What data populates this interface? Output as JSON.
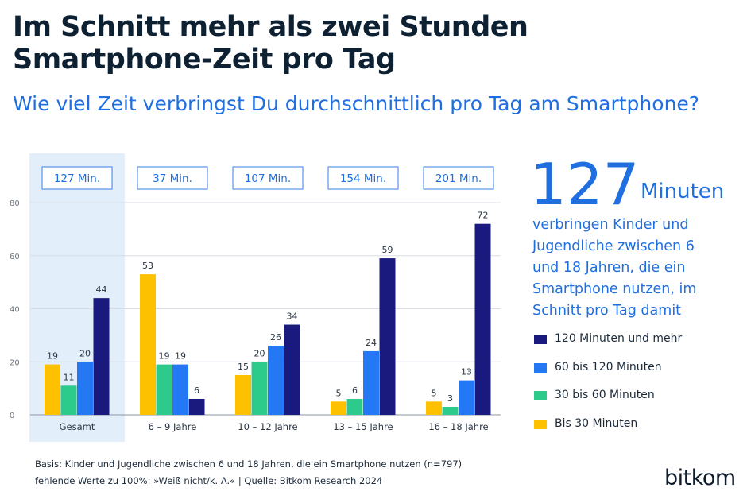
{
  "title": "Im Schnitt mehr als zwei Stunden Smartphone-Zeit pro Tag",
  "subtitle": "Wie viel Zeit verbringst Du durchschnittlich pro Tag am Smartphone?",
  "highlight": {
    "number": "127",
    "unit": "Minuten",
    "text": "verbringen Kinder und Jugendliche zwischen 6 und 18 Jahren, die ein Smartphone nutzen, im Schnitt pro Tag damit"
  },
  "colors": {
    "bis30": "#fdc100",
    "30bis60": "#2ccb8c",
    "60bis120": "#2478f4",
    "120plus": "#1a1a7e",
    "accent": "#1f6fe0",
    "highlight_band": "#e3eefb"
  },
  "legend": [
    {
      "label": "120 Minuten und mehr",
      "color": "#1a1a7e"
    },
    {
      "label": "60 bis 120 Minuten",
      "color": "#2478f4"
    },
    {
      "label": "30 bis 60 Minuten",
      "color": "#2ccb8c"
    },
    {
      "label": "Bis 30 Minuten",
      "color": "#fdc100"
    }
  ],
  "chart_data": {
    "type": "bar",
    "categories": [
      "Gesamt",
      "6 – 9 Jahre",
      "10 – 12 Jahre",
      "13 – 15 Jahre",
      "16 – 18 Jahre"
    ],
    "averages": [
      "127 Min.",
      "37 Min.",
      "107 Min.",
      "154 Min.",
      "201 Min."
    ],
    "series": [
      {
        "name": "Bis 30 Minuten",
        "color": "#fdc100",
        "values": [
          19,
          53,
          15,
          5,
          5
        ]
      },
      {
        "name": "30 bis 60 Minuten",
        "color": "#2ccb8c",
        "values": [
          11,
          19,
          20,
          6,
          3
        ]
      },
      {
        "name": "60 bis 120 Minuten",
        "color": "#2478f4",
        "values": [
          20,
          19,
          26,
          24,
          13
        ]
      },
      {
        "name": "120 Minuten und mehr",
        "color": "#1a1a7e",
        "values": [
          44,
          6,
          34,
          59,
          72
        ]
      }
    ],
    "ylim": [
      0,
      80
    ],
    "yticks": [
      0,
      20,
      40,
      60,
      80
    ],
    "grid": true,
    "legend_position": "right",
    "highlighted_category": "Gesamt"
  },
  "footnotes": [
    "Basis: Kinder und Jugendliche zwischen 6 und 18 Jahren, die ein Smartphone nutzen (n=797)",
    "fehlende Werte zu 100%: »Weiß nicht/k. A.« | Quelle: Bitkom Research 2024"
  ],
  "brand": "bitkom"
}
